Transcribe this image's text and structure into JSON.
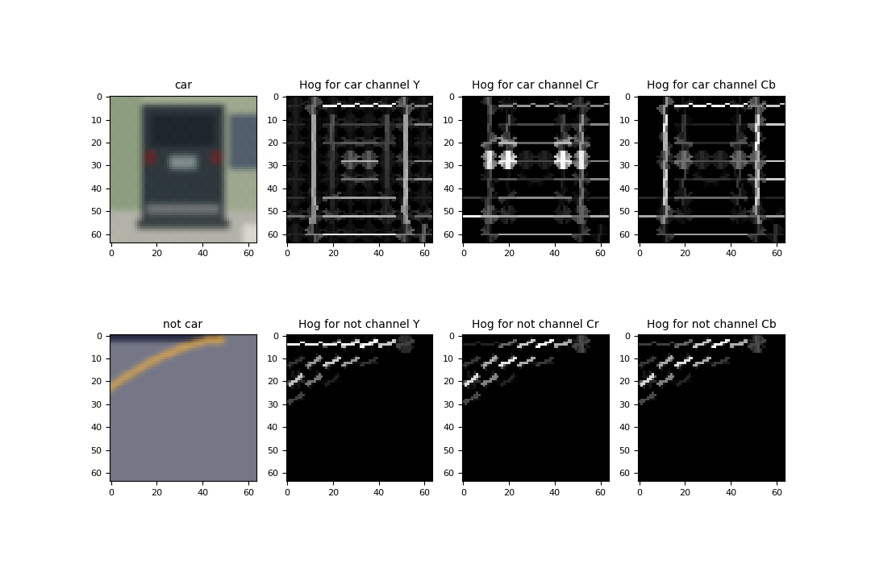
{
  "chart_data": [
    {
      "type": "image",
      "title": "car",
      "xlim": [
        -0.5,
        63.5
      ],
      "ylim": [
        63.5,
        -0.5
      ],
      "xticks": [
        0,
        20,
        40,
        60
      ],
      "yticks": [
        0,
        10,
        20,
        30,
        40,
        50,
        60
      ]
    },
    {
      "type": "hog",
      "title": "Hog for car channel Y",
      "xlim": [
        -0.5,
        63.5
      ],
      "ylim": [
        63.5,
        -0.5
      ],
      "xticks": [
        0,
        20,
        40,
        60
      ],
      "yticks": [
        0,
        10,
        20,
        30,
        40,
        50,
        60
      ]
    },
    {
      "type": "hog",
      "title": "Hog for car channel Cr",
      "xlim": [
        -0.5,
        63.5
      ],
      "ylim": [
        63.5,
        -0.5
      ],
      "xticks": [
        0,
        20,
        40,
        60
      ],
      "yticks": [
        0,
        10,
        20,
        30,
        40,
        50,
        60
      ]
    },
    {
      "type": "hog",
      "title": "Hog for car channel Cb",
      "xlim": [
        -0.5,
        63.5
      ],
      "ylim": [
        63.5,
        -0.5
      ],
      "xticks": [
        0,
        20,
        40,
        60
      ],
      "yticks": [
        0,
        10,
        20,
        30,
        40,
        50,
        60
      ]
    },
    {
      "type": "image",
      "title": "not car",
      "xlim": [
        -0.5,
        63.5
      ],
      "ylim": [
        63.5,
        -0.5
      ],
      "xticks": [
        0,
        20,
        40,
        60
      ],
      "yticks": [
        0,
        10,
        20,
        30,
        40,
        50,
        60
      ]
    },
    {
      "type": "hog",
      "title": "Hog for not channel Y",
      "xlim": [
        -0.5,
        63.5
      ],
      "ylim": [
        63.5,
        -0.5
      ],
      "xticks": [
        0,
        20,
        40,
        60
      ],
      "yticks": [
        0,
        10,
        20,
        30,
        40,
        50,
        60
      ]
    },
    {
      "type": "hog",
      "title": "Hog for not channel Cr",
      "xlim": [
        -0.5,
        63.5
      ],
      "ylim": [
        63.5,
        -0.5
      ],
      "xticks": [
        0,
        20,
        40,
        60
      ],
      "yticks": [
        0,
        10,
        20,
        30,
        40,
        50,
        60
      ]
    },
    {
      "type": "hog",
      "title": "Hog for not channel Cb",
      "xlim": [
        -0.5,
        63.5
      ],
      "ylim": [
        63.5,
        -0.5
      ],
      "xticks": [
        0,
        20,
        40,
        60
      ],
      "yticks": [
        0,
        10,
        20,
        30,
        40,
        50,
        60
      ]
    }
  ]
}
